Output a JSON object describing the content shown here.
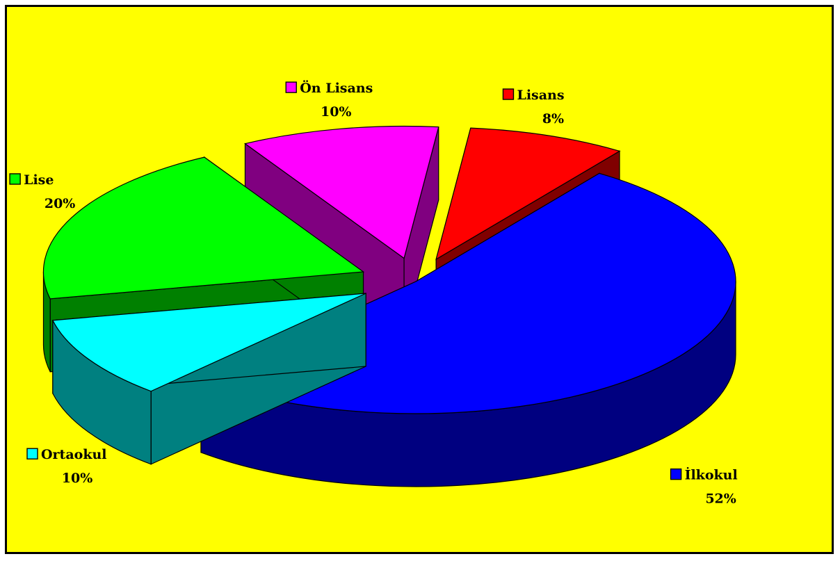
{
  "chart_data": {
    "type": "pie",
    "title": "",
    "style": "3d-exploded",
    "legend_placement": "labels-on-slices",
    "categories": [
      "İlkokul",
      "Ortaokul",
      "Lise",
      "Ön Lisans",
      "Lisans"
    ],
    "values": [
      52,
      10,
      20,
      10,
      8
    ],
    "value_labels": [
      "52%",
      "10%",
      "20%",
      "10%",
      "8%"
    ],
    "colors": [
      "#0000ff",
      "#00ffff",
      "#00ff00",
      "#ff00ff",
      "#ff0000"
    ],
    "side_colors": [
      "#000080",
      "#008080",
      "#008000",
      "#800080",
      "#800000"
    ]
  },
  "colors": {
    "background": "#ffff00",
    "frame_border": "#000000",
    "outline": "#000000"
  }
}
